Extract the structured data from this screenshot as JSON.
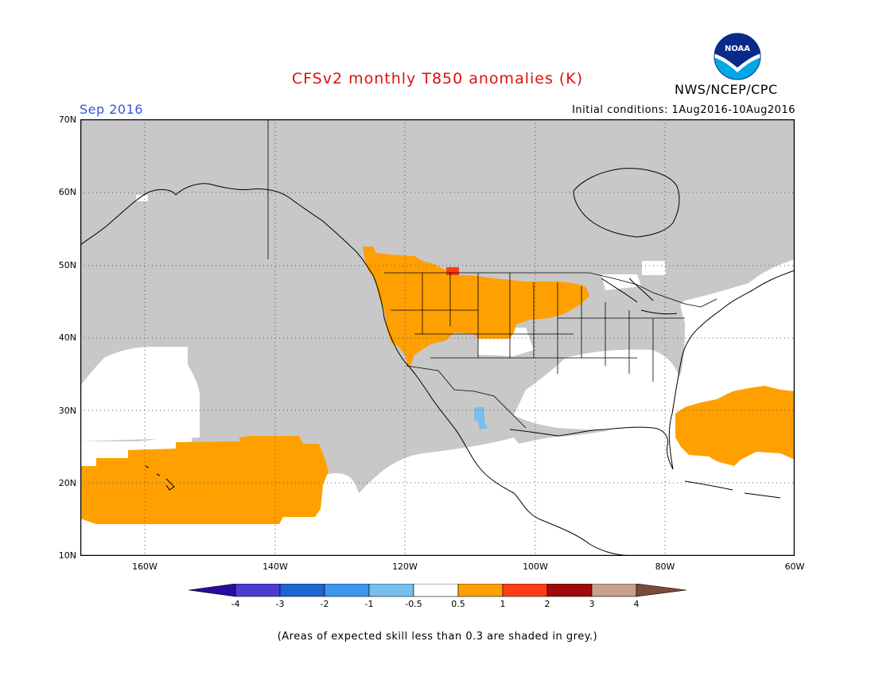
{
  "header": {
    "title": "CFSv2 monthly T850 anomalies (K)",
    "period": "Sep 2016",
    "initial_conditions": "Initial conditions: 1Aug2016-10Aug2016",
    "agency": "NWS/NCEP/CPC",
    "logo_text": "NOAA"
  },
  "map": {
    "lat_labels": [
      "70N",
      "60N",
      "50N",
      "40N",
      "30N",
      "20N",
      "10N"
    ],
    "lon_labels": [
      "160W",
      "140W",
      "120W",
      "100W",
      "80W",
      "60W"
    ],
    "lat_range": [
      10,
      70
    ],
    "lon_range": [
      -170,
      -60
    ],
    "colors": {
      "ocean_land_background": "#ffffff",
      "low_skill": "#c8c8c8",
      "anomaly_0_5_to_1": "#ffa000",
      "anomaly_1_to_2": "#ff3c14",
      "anomaly_minus_0_5_to_minus_1": "#78bef0",
      "coastline": "#000000"
    }
  },
  "colorbar": {
    "tick_labels": [
      "-4",
      "-3",
      "-2",
      "-1",
      "-0.5",
      "0.5",
      "1",
      "2",
      "3",
      "4"
    ],
    "colors": [
      "#2a0aa0",
      "#4c3cd2",
      "#1e64d2",
      "#3c96f0",
      "#78bef0",
      "#ffffff",
      "#ffa000",
      "#ff3c14",
      "#a00a0a",
      "#c8a08c",
      "#7a4a3a"
    ]
  },
  "footnote": "(Areas of expected skill less than 0.3 are shaded in grey.)"
}
